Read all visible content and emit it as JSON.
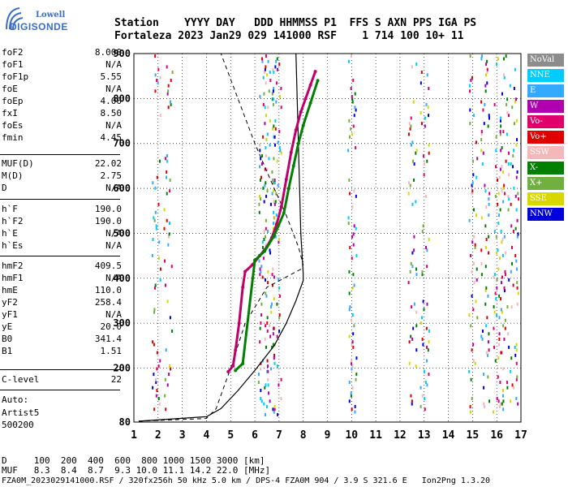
{
  "logo": {
    "line1": "Lowell",
    "line2": "DIGISONDE"
  },
  "header": {
    "line1": "Station    YYYY DAY   DDD HHMMSS P1  FFS S AXN PPS IGA PS",
    "line2": "Fortaleza 2023 Jan29 029 141000 RSF    1 714 100 10+ 11"
  },
  "params_group1": [
    {
      "k": "foF2",
      "v": "8.000"
    },
    {
      "k": "foF1",
      "v": "N/A"
    },
    {
      "k": "foF1p",
      "v": "5.55"
    },
    {
      "k": "foE",
      "v": "N/A"
    },
    {
      "k": "foEp",
      "v": "4.00"
    },
    {
      "k": "fxI",
      "v": "8.50"
    },
    {
      "k": "foEs",
      "v": "N/A"
    },
    {
      "k": "fmin",
      "v": "4.45"
    }
  ],
  "params_group2": [
    {
      "k": "MUF(D)",
      "v": "22.02"
    },
    {
      "k": "M(D)",
      "v": "2.75"
    },
    {
      "k": "D",
      "v": "N/A"
    }
  ],
  "params_group3": [
    {
      "k": "h`F",
      "v": "190.0"
    },
    {
      "k": "h`F2",
      "v": "190.0"
    },
    {
      "k": "h`E",
      "v": "N/A"
    },
    {
      "k": "h`Es",
      "v": "N/A"
    }
  ],
  "params_group4": [
    {
      "k": "hmF2",
      "v": "409.5"
    },
    {
      "k": "hmF1",
      "v": "N/A"
    },
    {
      "k": "hmE",
      "v": "110.0"
    },
    {
      "k": "yF2",
      "v": "258.4"
    },
    {
      "k": "yF1",
      "v": "N/A"
    },
    {
      "k": "yE",
      "v": "20.0"
    },
    {
      "k": "B0",
      "v": "341.4"
    },
    {
      "k": "B1",
      "v": "1.51"
    }
  ],
  "params_group5": [
    {
      "k": "C-level",
      "v": "22"
    }
  ],
  "auto": {
    "line1": "Auto:",
    "line2": "Artist5",
    "line3": "500200"
  },
  "legend": [
    {
      "label": "NoVal",
      "bg": "#8c8c8c",
      "fg": "#ffffff"
    },
    {
      "label": "NNE",
      "bg": "#00ccff",
      "fg": "#ffffff"
    },
    {
      "label": "E",
      "bg": "#33aaff",
      "fg": "#ffffff"
    },
    {
      "label": "W",
      "bg": "#b000b0",
      "fg": "#ffffff"
    },
    {
      "label": "Vo-",
      "bg": "#e0006a",
      "fg": "#ffffff"
    },
    {
      "label": "Vo+",
      "bg": "#e00000",
      "fg": "#ffffff"
    },
    {
      "label": "SSW",
      "bg": "#f4b8b8",
      "fg": "#ffffff"
    },
    {
      "label": "X-",
      "bg": "#008000",
      "fg": "#ffffff"
    },
    {
      "label": "X+",
      "bg": "#70b040",
      "fg": "#ffffff"
    },
    {
      "label": "SSE",
      "bg": "#d8d800",
      "fg": "#ffffff"
    },
    {
      "label": "NNW",
      "bg": "#0000dd",
      "fg": "#ffffff"
    }
  ],
  "footer": {
    "d_line": "D     100  200  400  600  800 1000 1500 3000 [km]",
    "muf_line": "MUF   8.3  8.4  8.7  9.3 10.0 11.1 14.2 22.0 [MHz]",
    "file_line": "FZA0M_2023029141000.RSF / 320fx256h 50 kHz 5.0 km / DPS-4 FZA0M 904 / 3.9 S 321.6 E   Ion2Png 1.3.20"
  },
  "chart_data": {
    "type": "scatter",
    "title": "",
    "xlabel": "",
    "ylabel": "",
    "xlim": [
      1,
      17
    ],
    "ylim": [
      80,
      900
    ],
    "x_ticks": [
      1,
      2,
      3,
      4,
      5,
      6,
      7,
      8,
      9,
      10,
      11,
      12,
      13,
      14,
      15,
      16,
      17
    ],
    "y_ticks": [
      80,
      200,
      300,
      400,
      500,
      600,
      700,
      800,
      900
    ],
    "grid": true,
    "series": [
      {
        "name": "Vo-",
        "color": "#c0006a",
        "points": [
          [
            4.9,
            192
          ],
          [
            5.1,
            205
          ],
          [
            5.2,
            240
          ],
          [
            5.35,
            300
          ],
          [
            5.5,
            380
          ],
          [
            5.6,
            415
          ],
          [
            5.9,
            430
          ],
          [
            6.2,
            450
          ],
          [
            6.5,
            470
          ],
          [
            6.7,
            490
          ],
          [
            6.9,
            520
          ],
          [
            7.1,
            560
          ],
          [
            7.3,
            620
          ],
          [
            7.5,
            680
          ],
          [
            7.7,
            730
          ],
          [
            7.9,
            770
          ],
          [
            8.1,
            800
          ],
          [
            8.3,
            830
          ],
          [
            8.5,
            860
          ]
        ]
      },
      {
        "name": "X-",
        "color": "#008000",
        "points": [
          [
            5.2,
            195
          ],
          [
            5.5,
            210
          ],
          [
            6.0,
            440
          ],
          [
            6.4,
            460
          ],
          [
            6.8,
            495
          ],
          [
            7.2,
            545
          ],
          [
            7.4,
            600
          ],
          [
            7.6,
            650
          ],
          [
            7.8,
            700
          ],
          [
            8.0,
            740
          ],
          [
            8.3,
            790
          ],
          [
            8.6,
            840
          ]
        ]
      }
    ],
    "true_height_profile": [
      [
        1.2,
        82
      ],
      [
        4.0,
        92
      ],
      [
        4.6,
        110
      ],
      [
        5.3,
        150
      ],
      [
        6.0,
        195
      ],
      [
        6.8,
        250
      ],
      [
        7.3,
        300
      ],
      [
        7.7,
        350
      ],
      [
        8.0,
        395
      ],
      [
        8.0,
        410
      ],
      [
        7.9,
        500
      ],
      [
        7.85,
        600
      ],
      [
        7.8,
        700
      ],
      [
        7.75,
        800
      ],
      [
        7.7,
        900
      ]
    ],
    "dashed_profile": [
      [
        1.2,
        82
      ],
      [
        4.0,
        88
      ],
      [
        4.4,
        110
      ],
      [
        5.0,
        200
      ],
      [
        5.6,
        300
      ],
      [
        6.5,
        380
      ],
      [
        7.2,
        400
      ],
      [
        7.9,
        420
      ],
      [
        8.0,
        430
      ],
      [
        7.8,
        470
      ],
      [
        7.3,
        540
      ],
      [
        6.8,
        600
      ],
      [
        6.0,
        700
      ],
      [
        5.3,
        800
      ],
      [
        4.6,
        900
      ]
    ]
  }
}
